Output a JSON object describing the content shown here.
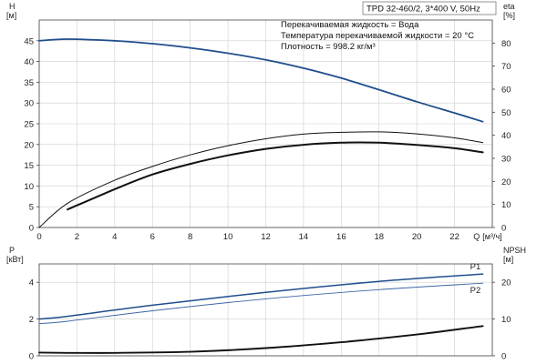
{
  "chart_data": [
    {
      "type": "line",
      "left_axis": {
        "label": "H",
        "unit": "[м]",
        "ylim": [
          0,
          50
        ],
        "ticks": [
          0,
          5,
          10,
          15,
          20,
          25,
          30,
          35,
          40,
          45
        ]
      },
      "right_axis": {
        "label": "eta",
        "unit": "[%]",
        "ylim": [
          0,
          90
        ],
        "ticks": [
          0,
          10,
          20,
          30,
          40,
          50,
          60,
          70,
          80
        ]
      },
      "x_axis": {
        "label": "Q",
        "unit": "[м³/ч]",
        "xlim": [
          0,
          24
        ],
        "ticks": [
          0,
          2,
          4,
          6,
          8,
          10,
          12,
          14,
          16,
          18,
          20,
          22
        ]
      },
      "grid": true,
      "info_box": "TPD 32-460/2, 3*400 V, 50Hz",
      "info_lines": [
        "Перекачиваемая жидкость = Вода",
        "Температура перекачиваемой жидкости = 20 °C",
        "Плотность = 998.2 кг/м³"
      ],
      "series": [
        {
          "axis": "left",
          "color": "#1f4e8c",
          "width": 1.8,
          "x": [
            0,
            1.5,
            4,
            6,
            8,
            10,
            12,
            14,
            16,
            18,
            20,
            22,
            23.5
          ],
          "y": [
            45,
            45.4,
            45.0,
            44.3,
            43.3,
            42.0,
            40.4,
            38.4,
            36.0,
            33.2,
            30.3,
            27.6,
            25.5
          ]
        },
        {
          "axis": "right",
          "color": "#111111",
          "width": 1.0,
          "x": [
            0,
            1.5,
            4,
            6,
            8,
            10,
            12,
            14,
            16,
            18,
            20,
            22,
            23.5
          ],
          "y": [
            0,
            10.5,
            20.5,
            26.5,
            31.5,
            35.5,
            38.5,
            40.5,
            41.3,
            41.5,
            40.6,
            38.9,
            36.8
          ]
        },
        {
          "axis": "right",
          "color": "#111111",
          "width": 2.0,
          "x": [
            1.5,
            4,
            6,
            8,
            10,
            12,
            14,
            16,
            18,
            20,
            22,
            23.5
          ],
          "y": [
            7.8,
            16.6,
            23.0,
            27.6,
            31.3,
            34.1,
            35.9,
            36.8,
            36.8,
            35.8,
            34.4,
            32.6
          ]
        }
      ]
    },
    {
      "type": "line",
      "left_axis": {
        "label": "P",
        "unit": "[кВт]",
        "ylim": [
          0,
          5
        ],
        "ticks": [
          0,
          2,
          4
        ]
      },
      "right_axis": {
        "label": "NPSH",
        "unit": "[м]",
        "ylim": [
          0,
          25
        ],
        "ticks": [
          0,
          10,
          20
        ]
      },
      "x_axis": {
        "xlim": [
          0,
          24
        ]
      },
      "grid": true,
      "series": [
        {
          "name": "P1",
          "axis": "left",
          "color": "#1f4e8c",
          "width": 1.5,
          "x": [
            0,
            1.5,
            6,
            12,
            18,
            23.5
          ],
          "y": [
            2.0,
            2.15,
            2.75,
            3.45,
            4.05,
            4.45
          ]
        },
        {
          "name": "P2",
          "axis": "left",
          "color": "#3b66a6",
          "width": 0.9,
          "x": [
            0,
            1.5,
            6,
            12,
            18,
            23.5
          ],
          "y": [
            1.75,
            1.88,
            2.45,
            3.1,
            3.6,
            3.95
          ]
        },
        {
          "axis": "right",
          "color": "#111111",
          "width": 1.9,
          "x": [
            0,
            1.5,
            4,
            8,
            12,
            16,
            20,
            23.5
          ],
          "y": [
            0.9,
            0.8,
            0.8,
            1.1,
            2.1,
            3.7,
            5.8,
            8.1
          ]
        }
      ]
    }
  ]
}
